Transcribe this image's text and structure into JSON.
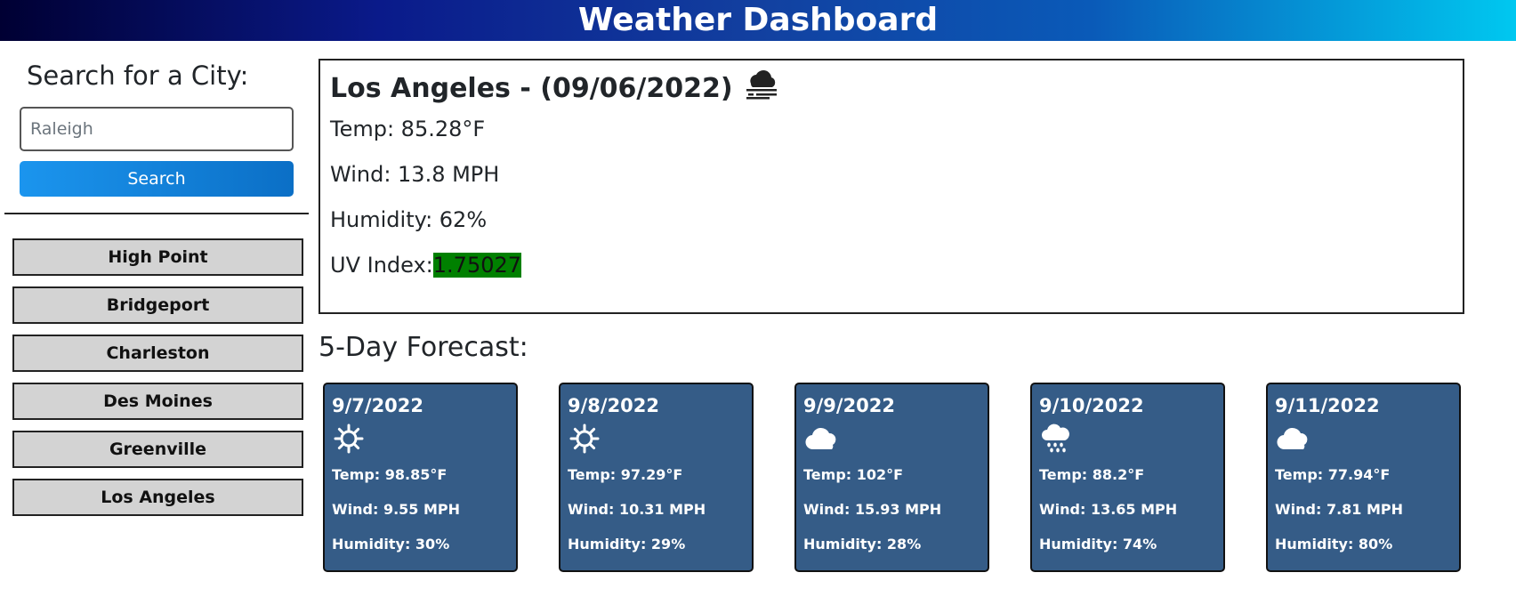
{
  "header": {
    "title": "Weather Dashboard"
  },
  "search": {
    "title": "Search for a City:",
    "placeholder": "Raleigh",
    "button_label": "Search"
  },
  "history": [
    "High Point",
    "Bridgeport",
    "Charleston",
    "Des Moines",
    "Greenville",
    "Los Angeles"
  ],
  "current": {
    "title": "Los Angeles - (09/06/2022)",
    "icon": "mist-icon",
    "temp": "Temp: 85.28°F",
    "wind": "Wind: 13.8 MPH",
    "humidity": "Humidity: 62%",
    "uv_label": "UV Index:",
    "uv_value": "1.75027",
    "uv_color": "#008000"
  },
  "forecast": {
    "title": "5-Day Forecast:",
    "days": [
      {
        "date": "9/7/2022",
        "icon": "sun-icon",
        "temp": "Temp: 98.85°F",
        "wind": "Wind: 9.55 MPH",
        "humidity": "Humidity: 30%"
      },
      {
        "date": "9/8/2022",
        "icon": "sun-icon",
        "temp": "Temp: 97.29°F",
        "wind": "Wind: 10.31 MPH",
        "humidity": "Humidity: 29%"
      },
      {
        "date": "9/9/2022",
        "icon": "cloud-icon",
        "temp": "Temp: 102°F",
        "wind": "Wind: 15.93 MPH",
        "humidity": "Humidity: 28%"
      },
      {
        "date": "9/10/2022",
        "icon": "rain-cloud-icon",
        "temp": "Temp: 88.2°F",
        "wind": "Wind: 13.65 MPH",
        "humidity": "Humidity: 74%"
      },
      {
        "date": "9/11/2022",
        "icon": "cloud-icon",
        "temp": "Temp: 77.94°F",
        "wind": "Wind: 7.81 MPH",
        "humidity": "Humidity: 80%"
      }
    ]
  },
  "colors": {
    "card_bg": "#355c87",
    "history_bg": "#d3d3d3",
    "search_button": "#1b95ee"
  }
}
